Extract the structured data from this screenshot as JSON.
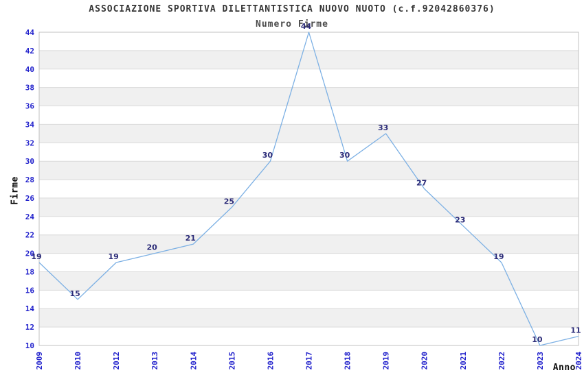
{
  "title": "ASSOCIAZIONE SPORTIVA DILETTANTISTICA NUOVO NUOTO (c.f.92042860376)",
  "subtitle": "Numero Firme",
  "chart_data": {
    "type": "line",
    "title": "ASSOCIAZIONE SPORTIVA DILETTANTISTICA NUOVO NUOTO (c.f.92042860376)",
    "subtitle": "Numero Firme",
    "categories": [
      "2009",
      "2010",
      "2012",
      "2013",
      "2014",
      "2015",
      "2016",
      "2017",
      "2018",
      "2019",
      "2020",
      "2021",
      "2022",
      "2023",
      "2024"
    ],
    "values": [
      19,
      15,
      19,
      20,
      21,
      25,
      30,
      44,
      30,
      33,
      27,
      23,
      19,
      10,
      11
    ],
    "xlabel": "Anno",
    "ylabel": "Firme",
    "ylim": [
      10,
      44
    ],
    "ytick_step": 2,
    "grid": true,
    "legend": "none",
    "x_tick_rotation": -90,
    "data_labels_shown": true,
    "colors": {
      "line": "#7cb0e4",
      "tick_label": "#2222cc",
      "data_label": "#2b2b78",
      "band": "#f0f0f0",
      "band_alt": "#ffffff",
      "grid": "#d9d9d9",
      "border": "#c0c0c0"
    }
  }
}
